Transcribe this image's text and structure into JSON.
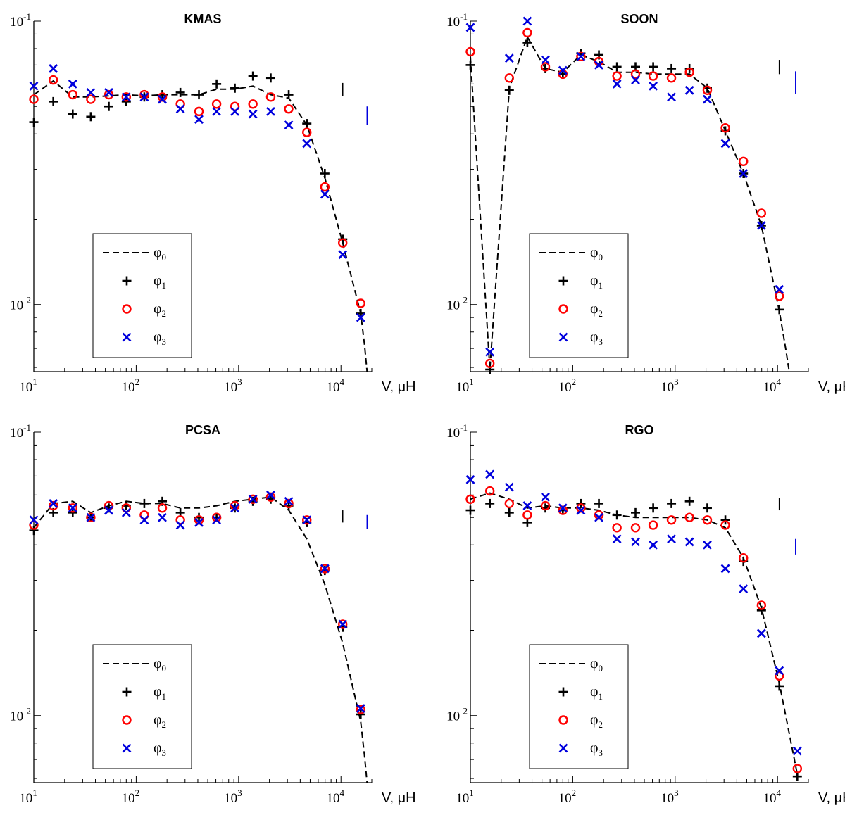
{
  "chart_data": [
    {
      "type": "scatter",
      "title": "KMAS",
      "xlabel": "V, μH",
      "xscale": "log",
      "yscale": "log",
      "xlim": [
        10,
        20000
      ],
      "ylim": [
        0.0058,
        0.1
      ],
      "xticks": [
        {
          "base": "10",
          "exp": "1"
        },
        {
          "base": "10",
          "exp": "2"
        },
        {
          "base": "10",
          "exp": "3"
        },
        {
          "base": "10",
          "exp": "4"
        }
      ],
      "yticks": [
        {
          "base": "10",
          "exp": "-1",
          "value": 0.1
        },
        {
          "base": "10",
          "exp": "-2",
          "value": 0.01
        }
      ],
      "legend_position": "lower-left",
      "series": [
        {
          "name": "φ0",
          "sym": "φ",
          "sub": "0",
          "marker": "dash",
          "color": "#000000",
          "x": [
            10,
            15.5,
            24,
            36,
            54,
            80,
            120,
            180,
            270,
            410,
            610,
            920,
            1380,
            2060,
            3090,
            4640,
            6960,
            10400,
            15600,
            17000,
            18000
          ],
          "y": [
            0.055,
            0.0615,
            0.054,
            0.054,
            0.0545,
            0.055,
            0.0545,
            0.055,
            0.055,
            0.055,
            0.0575,
            0.0575,
            0.059,
            0.055,
            0.0535,
            0.043,
            0.028,
            0.0165,
            0.0093,
            0.0072,
            0.0058
          ]
        },
        {
          "name": "φ1",
          "sym": "φ",
          "sub": "1",
          "marker": "plus",
          "color": "#000000",
          "x": [
            10,
            15.5,
            24,
            36,
            54,
            80,
            120,
            180,
            270,
            410,
            610,
            920,
            1380,
            2060,
            3090,
            4640,
            6960,
            10400,
            15600
          ],
          "y": [
            0.044,
            0.052,
            0.047,
            0.046,
            0.05,
            0.052,
            0.054,
            0.055,
            0.056,
            0.055,
            0.06,
            0.058,
            0.064,
            0.063,
            0.055,
            0.0435,
            0.029,
            0.017,
            0.0093
          ]
        },
        {
          "name": "φ2",
          "sym": "φ",
          "sub": "2",
          "marker": "circle",
          "color": "#ff0000",
          "x": [
            10,
            15.5,
            24,
            36,
            54,
            80,
            120,
            180,
            270,
            410,
            610,
            920,
            1380,
            2060,
            3090,
            4640,
            6960,
            10400,
            15600
          ],
          "y": [
            0.053,
            0.062,
            0.055,
            0.053,
            0.055,
            0.054,
            0.055,
            0.054,
            0.051,
            0.048,
            0.051,
            0.05,
            0.051,
            0.054,
            0.049,
            0.0405,
            0.026,
            0.0165,
            0.0101
          ]
        },
        {
          "name": "φ3",
          "sym": "φ",
          "sub": "3",
          "marker": "x",
          "color": "#0000dd",
          "x": [
            10,
            15.5,
            24,
            36,
            54,
            80,
            120,
            180,
            270,
            410,
            610,
            920,
            1380,
            2060,
            3090,
            4640,
            6960,
            10400,
            15600
          ],
          "y": [
            0.059,
            0.068,
            0.06,
            0.056,
            0.056,
            0.054,
            0.054,
            0.053,
            0.049,
            0.045,
            0.048,
            0.048,
            0.047,
            0.048,
            0.043,
            0.037,
            0.0245,
            0.015,
            0.009
          ]
        }
      ],
      "error_bars": [
        {
          "color": "#000000",
          "x": 10400,
          "y_range": [
            0.0545,
            0.0605
          ]
        },
        {
          "color": "#0000dd",
          "x": 18000,
          "y_range": [
            0.043,
            0.05
          ]
        }
      ]
    },
    {
      "type": "scatter",
      "title": "SOON",
      "xlabel": "V, μH",
      "xscale": "log",
      "yscale": "log",
      "xlim": [
        10,
        20000
      ],
      "ylim": [
        0.0058,
        0.1
      ],
      "xticks": [
        {
          "base": "10",
          "exp": "1"
        },
        {
          "base": "10",
          "exp": "2"
        },
        {
          "base": "10",
          "exp": "3"
        },
        {
          "base": "10",
          "exp": "4"
        }
      ],
      "yticks": [
        {
          "base": "10",
          "exp": "-1",
          "value": 0.1
        },
        {
          "base": "10",
          "exp": "-2",
          "value": 0.01
        }
      ],
      "legend_position": "lower-left",
      "series": [
        {
          "name": "φ0",
          "sym": "φ",
          "sub": "0",
          "marker": "dash",
          "color": "#000000",
          "x": [
            10,
            15.5,
            24,
            36,
            54,
            80,
            120,
            180,
            270,
            410,
            610,
            920,
            1380,
            2060,
            3090,
            4640,
            6960,
            10400,
            12000,
            13000
          ],
          "y": [
            0.075,
            0.0059,
            0.058,
            0.088,
            0.068,
            0.066,
            0.076,
            0.072,
            0.066,
            0.066,
            0.065,
            0.065,
            0.065,
            0.058,
            0.041,
            0.029,
            0.019,
            0.0095,
            0.007,
            0.0058
          ]
        },
        {
          "name": "φ1",
          "sym": "φ",
          "sub": "1",
          "marker": "plus",
          "color": "#000000",
          "x": [
            10,
            15.5,
            24,
            36,
            54,
            80,
            120,
            180,
            270,
            410,
            610,
            920,
            1380,
            2060,
            3090,
            4640,
            6960,
            10400
          ],
          "y": [
            0.07,
            0.0059,
            0.057,
            0.084,
            0.068,
            0.065,
            0.077,
            0.076,
            0.069,
            0.069,
            0.069,
            0.068,
            0.068,
            0.058,
            0.041,
            0.029,
            0.019,
            0.0096
          ]
        },
        {
          "name": "φ2",
          "sym": "φ",
          "sub": "2",
          "marker": "circle",
          "color": "#ff0000",
          "x": [
            10,
            15.5,
            24,
            36,
            54,
            80,
            120,
            180,
            270,
            410,
            610,
            920,
            1380,
            2060,
            3090,
            4640,
            6960,
            10400
          ],
          "y": [
            0.078,
            0.0062,
            0.063,
            0.091,
            0.069,
            0.065,
            0.075,
            0.072,
            0.064,
            0.065,
            0.064,
            0.063,
            0.066,
            0.057,
            0.042,
            0.032,
            0.021,
            0.0107
          ]
        },
        {
          "name": "φ3",
          "sym": "φ",
          "sub": "3",
          "marker": "x",
          "color": "#0000dd",
          "x": [
            10,
            15.5,
            24,
            36,
            54,
            80,
            120,
            180,
            270,
            410,
            610,
            920,
            1380,
            2060,
            3090,
            4640,
            6960,
            10400
          ],
          "y": [
            0.095,
            0.0068,
            0.074,
            0.1,
            0.073,
            0.067,
            0.075,
            0.07,
            0.06,
            0.062,
            0.059,
            0.054,
            0.057,
            0.053,
            0.037,
            0.029,
            0.019,
            0.0113
          ]
        }
      ],
      "error_bars": [
        {
          "color": "#000000",
          "x": 10400,
          "y_range": [
            0.065,
            0.073
          ]
        },
        {
          "color": "#0000dd",
          "x": 15000,
          "y_range": [
            0.0555,
            0.0665
          ]
        }
      ]
    },
    {
      "type": "scatter",
      "title": "PCSA",
      "xlabel": "V, μH",
      "xscale": "log",
      "yscale": "log",
      "xlim": [
        10,
        20000
      ],
      "ylim": [
        0.0058,
        0.1
      ],
      "xticks": [
        {
          "base": "10",
          "exp": "1"
        },
        {
          "base": "10",
          "exp": "2"
        },
        {
          "base": "10",
          "exp": "3"
        },
        {
          "base": "10",
          "exp": "4"
        }
      ],
      "yticks": [
        {
          "base": "10",
          "exp": "-1",
          "value": 0.1
        },
        {
          "base": "10",
          "exp": "-2",
          "value": 0.01
        }
      ],
      "legend_position": "lower-left",
      "series": [
        {
          "name": "φ0",
          "sym": "φ",
          "sub": "0",
          "marker": "dash",
          "color": "#000000",
          "x": [
            10,
            15.5,
            24,
            36,
            54,
            80,
            120,
            180,
            270,
            410,
            610,
            920,
            1380,
            2060,
            3090,
            4640,
            6960,
            10400,
            15600,
            17000,
            18000
          ],
          "y": [
            0.046,
            0.056,
            0.057,
            0.052,
            0.055,
            0.057,
            0.056,
            0.056,
            0.054,
            0.054,
            0.055,
            0.057,
            0.058,
            0.059,
            0.053,
            0.042,
            0.029,
            0.018,
            0.0095,
            0.0072,
            0.0058
          ]
        },
        {
          "name": "φ1",
          "sym": "φ",
          "sub": "1",
          "marker": "plus",
          "color": "#000000",
          "x": [
            10,
            15.5,
            24,
            36,
            54,
            80,
            120,
            180,
            270,
            410,
            610,
            920,
            1380,
            2060,
            3090,
            4640,
            6960,
            10400,
            15600
          ],
          "y": [
            0.045,
            0.052,
            0.052,
            0.05,
            0.054,
            0.055,
            0.056,
            0.057,
            0.052,
            0.05,
            0.05,
            0.054,
            0.057,
            0.058,
            0.055,
            0.048,
            0.0325,
            0.0205,
            0.0101
          ]
        },
        {
          "name": "φ2",
          "sym": "φ",
          "sub": "2",
          "marker": "circle",
          "color": "#ff0000",
          "x": [
            10,
            15.5,
            24,
            36,
            54,
            80,
            120,
            180,
            270,
            410,
            610,
            920,
            1380,
            2060,
            3090,
            4640,
            6960,
            10400,
            15600
          ],
          "y": [
            0.047,
            0.055,
            0.054,
            0.05,
            0.055,
            0.054,
            0.051,
            0.054,
            0.049,
            0.049,
            0.05,
            0.055,
            0.058,
            0.059,
            0.056,
            0.049,
            0.033,
            0.021,
            0.0105
          ]
        },
        {
          "name": "φ3",
          "sym": "φ",
          "sub": "3",
          "marker": "x",
          "color": "#0000dd",
          "x": [
            10,
            15.5,
            24,
            36,
            54,
            80,
            120,
            180,
            270,
            410,
            610,
            920,
            1380,
            2060,
            3090,
            4640,
            6960,
            10400,
            15600
          ],
          "y": [
            0.049,
            0.056,
            0.054,
            0.05,
            0.053,
            0.052,
            0.049,
            0.05,
            0.047,
            0.048,
            0.049,
            0.054,
            0.058,
            0.06,
            0.057,
            0.049,
            0.033,
            0.021,
            0.0106
          ]
        }
      ],
      "error_bars": [
        {
          "color": "#000000",
          "x": 10400,
          "y_range": [
            0.048,
            0.053
          ]
        },
        {
          "color": "#0000dd",
          "x": 18000,
          "y_range": [
            0.0455,
            0.051
          ]
        }
      ]
    },
    {
      "type": "scatter",
      "title": "RGO",
      "xlabel": "V, μH",
      "xscale": "log",
      "yscale": "log",
      "xlim": [
        10,
        20000
      ],
      "ylim": [
        0.0058,
        0.1
      ],
      "xticks": [
        {
          "base": "10",
          "exp": "1"
        },
        {
          "base": "10",
          "exp": "2"
        },
        {
          "base": "10",
          "exp": "3"
        },
        {
          "base": "10",
          "exp": "4"
        }
      ],
      "yticks": [
        {
          "base": "10",
          "exp": "-1",
          "value": 0.1
        },
        {
          "base": "10",
          "exp": "-2",
          "value": 0.01
        }
      ],
      "legend_position": "lower-left",
      "series": [
        {
          "name": "φ0",
          "sym": "φ",
          "sub": "0",
          "marker": "dash",
          "color": "#000000",
          "x": [
            10,
            15.5,
            24,
            36,
            54,
            80,
            120,
            180,
            270,
            410,
            610,
            920,
            1380,
            2060,
            3090,
            4640,
            6960,
            10400,
            15600
          ],
          "y": [
            0.058,
            0.061,
            0.058,
            0.054,
            0.055,
            0.054,
            0.054,
            0.053,
            0.051,
            0.05,
            0.05,
            0.05,
            0.05,
            0.049,
            0.046,
            0.036,
            0.024,
            0.013,
            0.0062
          ]
        },
        {
          "name": "φ1",
          "sym": "φ",
          "sub": "1",
          "marker": "plus",
          "color": "#000000",
          "x": [
            10,
            15.5,
            24,
            36,
            54,
            80,
            120,
            180,
            270,
            410,
            610,
            920,
            1380,
            2060,
            3090,
            4640,
            6960,
            10400,
            15600
          ],
          "y": [
            0.053,
            0.056,
            0.052,
            0.048,
            0.054,
            0.053,
            0.056,
            0.056,
            0.051,
            0.052,
            0.054,
            0.056,
            0.057,
            0.054,
            0.049,
            0.035,
            0.0235,
            0.0127,
            0.0061
          ]
        },
        {
          "name": "φ2",
          "sym": "φ",
          "sub": "2",
          "marker": "circle",
          "color": "#ff0000",
          "x": [
            10,
            15.5,
            24,
            36,
            54,
            80,
            120,
            180,
            270,
            410,
            610,
            920,
            1380,
            2060,
            3090,
            4640,
            6960,
            10400,
            15600
          ],
          "y": [
            0.058,
            0.062,
            0.056,
            0.051,
            0.055,
            0.053,
            0.054,
            0.051,
            0.046,
            0.046,
            0.047,
            0.049,
            0.05,
            0.049,
            0.047,
            0.036,
            0.0245,
            0.0138,
            0.0065
          ]
        },
        {
          "name": "φ3",
          "sym": "φ",
          "sub": "3",
          "marker": "x",
          "color": "#0000dd",
          "x": [
            10,
            15.5,
            24,
            36,
            54,
            80,
            120,
            180,
            270,
            410,
            610,
            920,
            1380,
            2060,
            3090,
            4640,
            6960,
            10400,
            15600
          ],
          "y": [
            0.068,
            0.071,
            0.064,
            0.055,
            0.059,
            0.054,
            0.053,
            0.05,
            0.042,
            0.041,
            0.04,
            0.042,
            0.041,
            0.04,
            0.033,
            0.028,
            0.0195,
            0.0144,
            0.0075
          ]
        }
      ],
      "error_bars": [
        {
          "color": "#000000",
          "x": 10400,
          "y_range": [
            0.053,
            0.0585
          ]
        },
        {
          "color": "#0000dd",
          "x": 15000,
          "y_range": [
            0.037,
            0.042
          ]
        }
      ]
    }
  ]
}
